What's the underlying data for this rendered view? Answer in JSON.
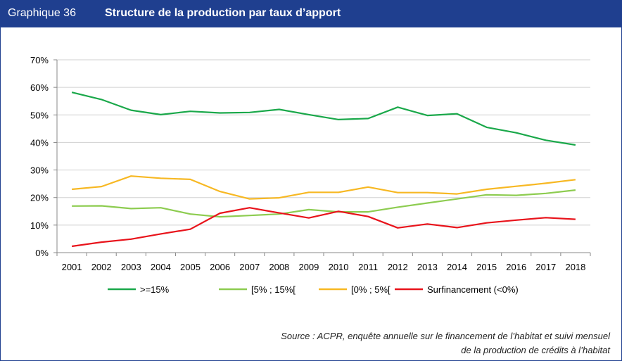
{
  "header": {
    "label": "Graphique 36",
    "title": "Structure de la production par taux d’apport"
  },
  "source": {
    "line1": "Source : ACPR, enquête annuelle sur le financement de l’habitat et suivi mensuel",
    "line2": "de la production de crédits à l’habitat"
  },
  "chart_data": {
    "type": "line",
    "title": "Structure de la production par taux d’apport",
    "x": [
      "2001",
      "2002",
      "2003",
      "2004",
      "2005",
      "2006",
      "2007",
      "2008",
      "2009",
      "2010",
      "2011",
      "2012",
      "2013",
      "2014",
      "2015",
      "2016",
      "2017",
      "2018"
    ],
    "ylim": [
      0,
      70
    ],
    "yticks": [
      0,
      10,
      20,
      30,
      40,
      50,
      60,
      70
    ],
    "ytick_labels": [
      "0%",
      "10%",
      "20%",
      "30%",
      "40%",
      "50%",
      "60%",
      "70%"
    ],
    "grid": "horizontal",
    "legend_position": "bottom",
    "series": [
      {
        "name": ">=15%",
        "color": "#1aa84a",
        "values": [
          58.2,
          55.6,
          51.7,
          50.1,
          51.3,
          50.7,
          50.9,
          52.0,
          50.1,
          48.3,
          48.7,
          52.8,
          49.8,
          50.4,
          45.5,
          43.5,
          40.8,
          39.1
        ]
      },
      {
        "name": "[5% ; 15%[",
        "color": "#8dcc50",
        "values": [
          16.9,
          17.0,
          16.0,
          16.3,
          14.0,
          13.0,
          13.5,
          14.0,
          15.6,
          14.8,
          14.8,
          16.5,
          18.0,
          19.5,
          21.0,
          20.8,
          21.5,
          22.7
        ]
      },
      {
        "name": "[0% ; 5%[",
        "color": "#f7b823",
        "values": [
          23.0,
          24.0,
          27.8,
          27.0,
          26.6,
          22.2,
          19.5,
          19.9,
          21.9,
          21.9,
          23.8,
          21.8,
          21.8,
          21.3,
          23.0,
          24.1,
          25.2,
          26.5
        ]
      },
      {
        "name": "Surfinancement (<0%)",
        "color": "#e8131b",
        "values": [
          2.3,
          3.8,
          4.9,
          6.8,
          8.5,
          14.3,
          16.3,
          14.4,
          12.6,
          15.0,
          13.1,
          9.0,
          10.4,
          9.1,
          10.8,
          11.8,
          12.7,
          12.1
        ]
      }
    ]
  }
}
